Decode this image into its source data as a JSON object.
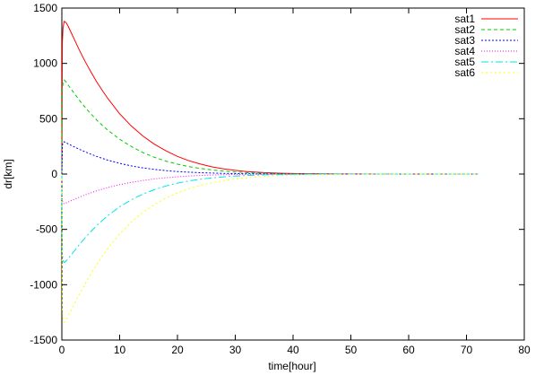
{
  "chart_data": {
    "type": "line",
    "title": "",
    "xlabel": "time[hour]",
    "ylabel": "dr[km]",
    "xlim": [
      0,
      80
    ],
    "ylim": [
      -1500,
      1500
    ],
    "xticks": [
      0,
      10,
      20,
      30,
      40,
      50,
      60,
      70,
      80
    ],
    "yticks": [
      -1500,
      -1000,
      -500,
      0,
      500,
      1000,
      1500
    ],
    "grid": false,
    "legend_position": "top-right",
    "series": [
      {
        "name": "sat1",
        "color": "#ff0000",
        "dash": "solid",
        "x": [
          0,
          0.1,
          0.2,
          0.4,
          0.7,
          1,
          1.5,
          2,
          3,
          4,
          5,
          6,
          7,
          8,
          10,
          12,
          14,
          16,
          18,
          20,
          22,
          24,
          26,
          28,
          30,
          32,
          35,
          38,
          41,
          45,
          50,
          55,
          60,
          65,
          72
        ],
        "y": [
          0,
          1190,
          1320,
          1380,
          1370,
          1345,
          1290,
          1235,
          1125,
          1020,
          925,
          835,
          755,
          680,
          545,
          435,
          345,
          270,
          210,
          160,
          120,
          90,
          65,
          47,
          33,
          23,
          13,
          7,
          4,
          2,
          1,
          0,
          0,
          0,
          0
        ]
      },
      {
        "name": "sat2",
        "color": "#00cc00",
        "dash": "4,3",
        "x": [
          0,
          0.1,
          0.2,
          0.4,
          0.7,
          1,
          1.5,
          2,
          3,
          4,
          5,
          6,
          7,
          8,
          10,
          12,
          14,
          16,
          18,
          20,
          22,
          24,
          26,
          28,
          30,
          32,
          35,
          38,
          41,
          45,
          50,
          55,
          60,
          65,
          72
        ],
        "y": [
          0,
          760,
          830,
          850,
          835,
          810,
          775,
          740,
          670,
          605,
          545,
          490,
          440,
          395,
          315,
          250,
          195,
          152,
          117,
          89,
          67,
          50,
          37,
          27,
          19,
          13,
          7,
          4,
          2,
          1,
          0,
          0,
          0,
          0,
          0
        ]
      },
      {
        "name": "sat3",
        "color": "#0000ff",
        "dash": "2,2",
        "x": [
          0,
          0.1,
          0.2,
          0.4,
          0.7,
          1,
          1.5,
          2,
          3,
          4,
          5,
          6,
          7,
          8,
          10,
          12,
          14,
          16,
          18,
          20,
          22,
          24,
          26,
          28,
          30,
          32,
          35,
          38,
          41,
          45,
          50,
          55,
          60,
          65,
          72
        ],
        "y": [
          0,
          260,
          285,
          292,
          285,
          275,
          262,
          250,
          225,
          202,
          180,
          160,
          142,
          125,
          97,
          74,
          56,
          42,
          31,
          23,
          17,
          12,
          9,
          6,
          4,
          3,
          2,
          1,
          0,
          0,
          0,
          0,
          0,
          0,
          0
        ]
      },
      {
        "name": "sat4",
        "color": "#ff00ff",
        "dash": "1,2",
        "x": [
          0,
          0.1,
          0.2,
          0.4,
          0.7,
          1,
          1.5,
          2,
          3,
          4,
          5,
          6,
          7,
          8,
          10,
          12,
          14,
          16,
          18,
          20,
          22,
          24,
          26,
          28,
          30,
          32,
          35,
          38,
          41,
          45,
          50,
          55,
          60,
          65,
          72
        ],
        "y": [
          0,
          -240,
          -262,
          -268,
          -263,
          -255,
          -243,
          -232,
          -210,
          -189,
          -170,
          -152,
          -136,
          -121,
          -96,
          -75,
          -58,
          -44,
          -33,
          -25,
          -18,
          -13,
          -9,
          -6,
          -4,
          -3,
          -2,
          -1,
          0,
          0,
          0,
          0,
          0,
          0,
          0
        ]
      },
      {
        "name": "sat5",
        "color": "#00e5e5",
        "dash": "8,3,2,3",
        "x": [
          0,
          0.1,
          0.2,
          0.4,
          0.7,
          1,
          1.5,
          2,
          3,
          4,
          5,
          6,
          7,
          8,
          10,
          12,
          14,
          16,
          18,
          20,
          22,
          24,
          26,
          28,
          30,
          32,
          35,
          38,
          41,
          45,
          50,
          55,
          60,
          65,
          72
        ],
        "y": [
          0,
          -720,
          -785,
          -800,
          -788,
          -770,
          -738,
          -705,
          -640,
          -578,
          -520,
          -467,
          -418,
          -374,
          -296,
          -233,
          -182,
          -141,
          -108,
          -82,
          -62,
          -46,
          -34,
          -25,
          -18,
          -13,
          -7,
          -4,
          -2,
          -1,
          0,
          0,
          0,
          0,
          0
        ]
      },
      {
        "name": "sat6",
        "color": "#ffff00",
        "dash": "2,3",
        "x": [
          0,
          0.1,
          0.2,
          0.4,
          0.7,
          1,
          1.5,
          2,
          3,
          4,
          5,
          6,
          7,
          8,
          10,
          12,
          14,
          16,
          18,
          20,
          22,
          24,
          26,
          28,
          30,
          32,
          35,
          38,
          41,
          45,
          50,
          55,
          60,
          65,
          72
        ],
        "y": [
          0,
          -1230,
          -1320,
          -1340,
          -1320,
          -1290,
          -1240,
          -1190,
          -1090,
          -995,
          -905,
          -820,
          -742,
          -670,
          -542,
          -435,
          -347,
          -275,
          -217,
          -170,
          -132,
          -102,
          -78,
          -59,
          -45,
          -34,
          -21,
          -13,
          -8,
          -4,
          -2,
          -1,
          0,
          0,
          0
        ]
      }
    ]
  }
}
